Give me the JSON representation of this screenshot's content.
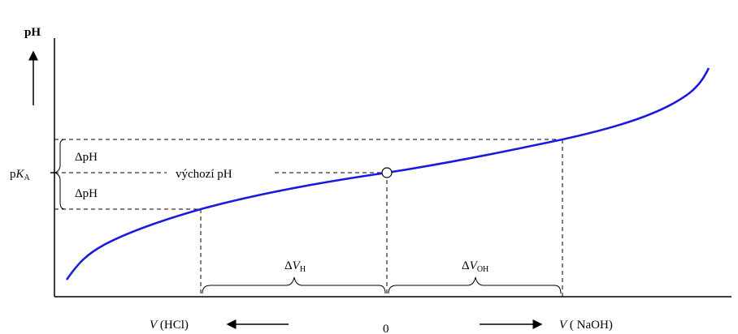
{
  "y_axis": {
    "label": "pH"
  },
  "pka": {
    "prefix": "p",
    "var": "K",
    "sub": "A"
  },
  "delta_ph_upper": {
    "delta": "Δ",
    "text": "pH"
  },
  "delta_ph_lower": {
    "delta": "Δ",
    "text": "pH"
  },
  "initial_ph_label": "výchozí pH",
  "delta_v_h": {
    "delta": "Δ",
    "var": "V",
    "sub": "H"
  },
  "delta_v_oh": {
    "delta": "Δ",
    "var": "V",
    "sub": "OH"
  },
  "x_left": {
    "var": "V",
    "text": " (HCl)"
  },
  "x_right": {
    "var": "V",
    "text": " ( NaOH)"
  },
  "x_zero": "0",
  "colors": {
    "curve": "#1a1adc",
    "axes": "#000000",
    "dashed": "#000000"
  }
}
